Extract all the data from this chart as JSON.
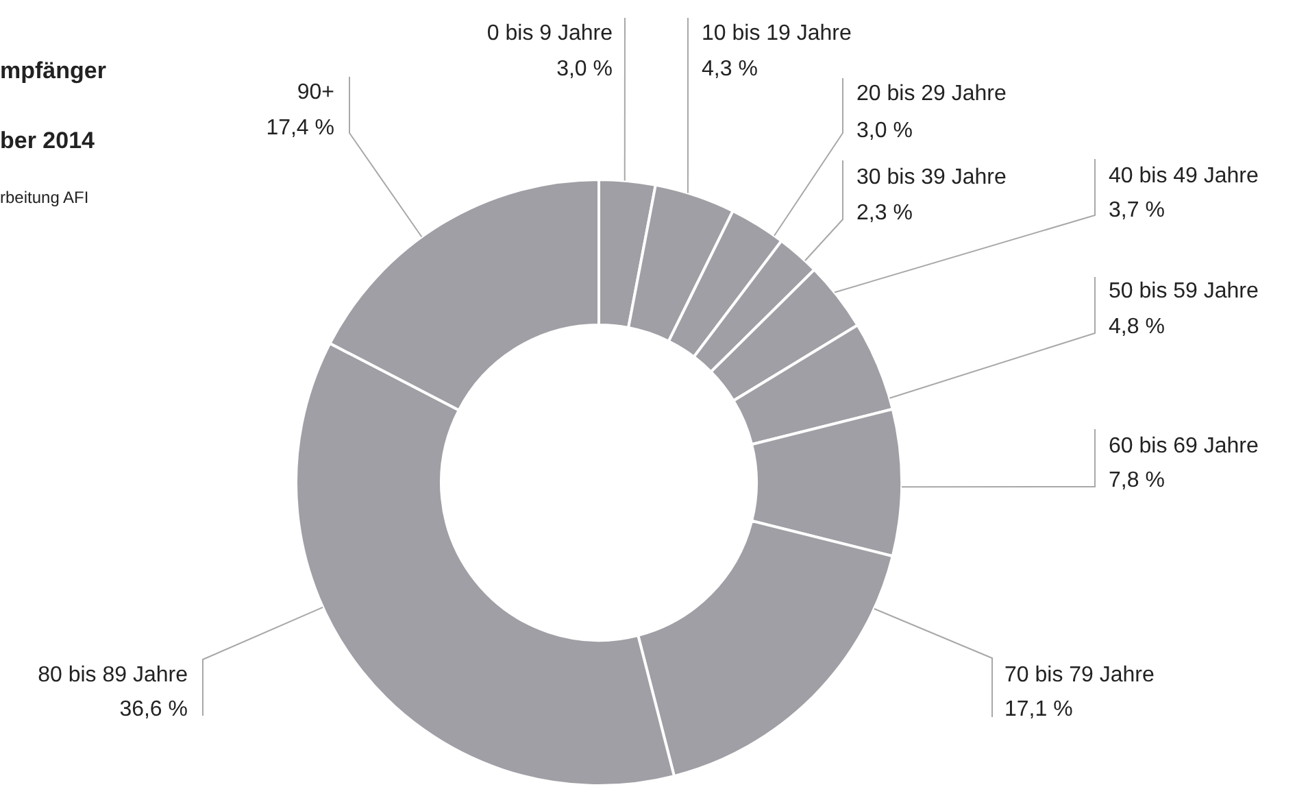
{
  "chart_data": {
    "type": "donut",
    "title": "mpfänger",
    "subtitle": "ber 2014",
    "annotations": [
      "rbeitung AFI"
    ],
    "categories": [
      "0 bis 9 Jahre",
      "10 bis 19 Jahre",
      "20 bis 29 Jahre",
      "30 bis 39 Jahre",
      "40 bis 49 Jahre",
      "50 bis 59 Jahre",
      "60 bis 69 Jahre",
      "70 bis 79 Jahre",
      "80 bis 89 Jahre",
      "90+"
    ],
    "values": [
      3.0,
      4.3,
      3.0,
      2.3,
      3.7,
      4.8,
      7.8,
      17.1,
      36.6,
      17.4
    ],
    "value_labels": [
      "3,0 %",
      "4,3 %",
      "3,0 %",
      "2,3 %",
      "3,7 %",
      "4,8 %",
      "7,8 %",
      "17,1 %",
      "36,6 %",
      "17,4 %"
    ],
    "colors": [
      "#a09fa5",
      "#a09fa5",
      "#a09fa5",
      "#a09fa5",
      "#a09fa5",
      "#a09fa5",
      "#a09fa5",
      "#a09fa5",
      "#a09fa5",
      "#a09fa5"
    ]
  }
}
